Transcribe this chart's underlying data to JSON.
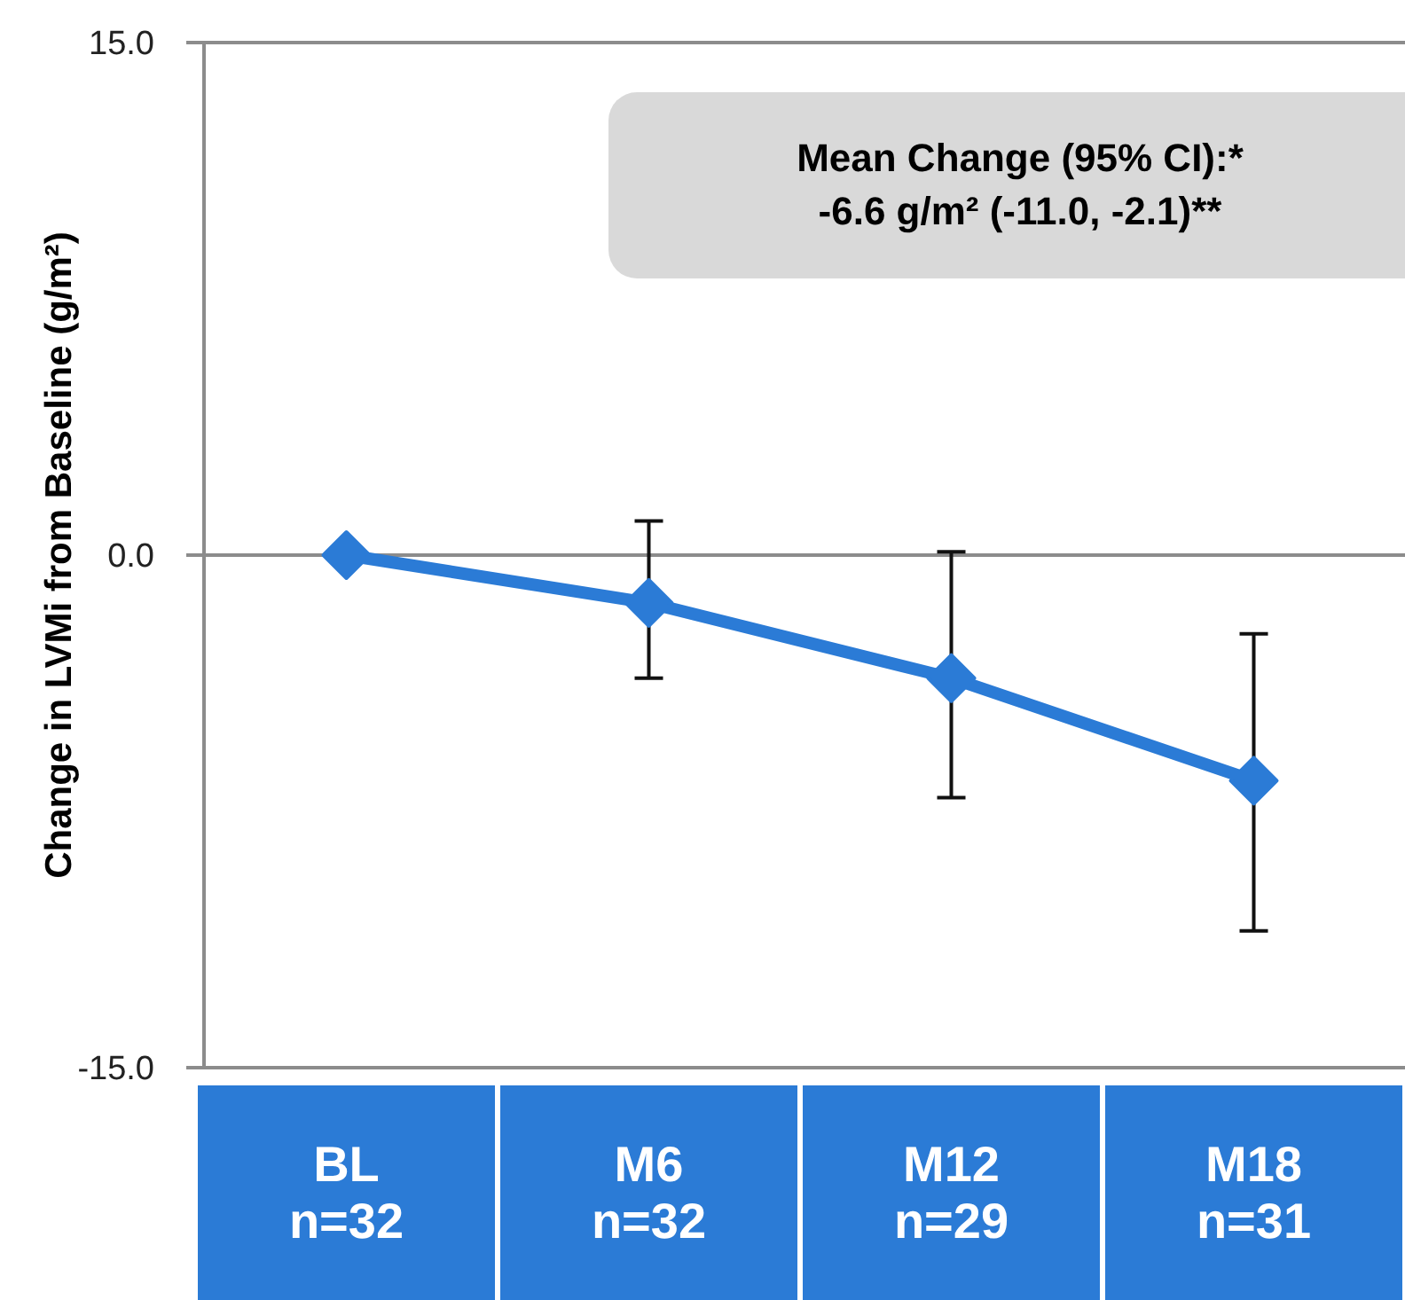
{
  "chart_data": {
    "type": "line",
    "ylabel": "Change in LVMi from Baseline (g/m²)",
    "categories": [
      "BL\nn=32",
      "M6\nn=32",
      "M12\nn=29",
      "M18\nn=31"
    ],
    "series": [
      {
        "color": "#2b7bd6",
        "values": [
          0,
          -1.4,
          -3.6,
          -6.6
        ],
        "errors": [
          null,
          [
            -3.6,
            1.0
          ],
          [
            -7.1,
            0.1
          ],
          [
            -11.0,
            -2.3
          ]
        ]
      }
    ],
    "ylim": [
      -15,
      15
    ],
    "yticks": [
      {
        "value": -15,
        "label": "-15.0"
      },
      {
        "value": 0,
        "label": "0.0"
      },
      {
        "value": 15,
        "label": "15.0"
      }
    ],
    "grid": "y",
    "marker": "diamond",
    "line_style": "solid",
    "annotations": [
      "Mean Change (95% CI):*\n-6.6 g/m² (-11.0, -2.1)**"
    ]
  }
}
